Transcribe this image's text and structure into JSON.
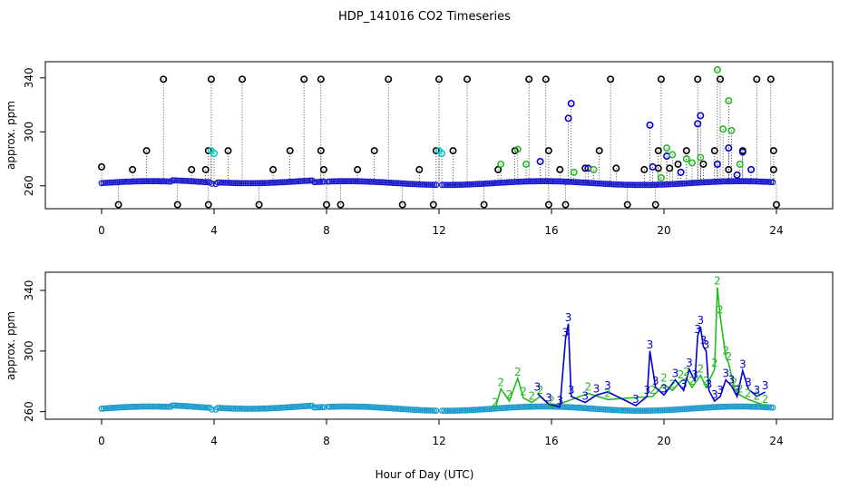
{
  "chart_data": [
    {
      "type": "scatter",
      "panel": "top",
      "title": "HDP_141016  CO2 Timeseries",
      "xlabel": "",
      "ylabel": "approx. ppm",
      "xlim": [
        -2,
        26
      ],
      "ylim": [
        243,
        352
      ],
      "x_ticks": [
        "0",
        "4",
        "8",
        "12",
        "16",
        "20",
        "24"
      ],
      "y_ticks": [
        "260",
        "300",
        "340"
      ],
      "grid": false,
      "series": [
        {
          "name": "black",
          "color": "#000000",
          "points": [
            [
              0.0,
              274
            ],
            [
              0.6,
              246
            ],
            [
              1.1,
              272
            ],
            [
              1.6,
              286
            ],
            [
              2.2,
              339
            ],
            [
              2.7,
              246
            ],
            [
              3.2,
              272
            ],
            [
              3.7,
              272
            ],
            [
              3.8,
              286
            ],
            [
              3.9,
              339
            ],
            [
              3.8,
              246
            ],
            [
              4.5,
              286
            ],
            [
              5.0,
              339
            ],
            [
              5.6,
              246
            ],
            [
              6.1,
              272
            ],
            [
              6.7,
              286
            ],
            [
              7.2,
              339
            ],
            [
              7.8,
              286
            ],
            [
              7.8,
              339
            ],
            [
              7.9,
              272
            ],
            [
              8.0,
              246
            ],
            [
              8.5,
              246
            ],
            [
              9.1,
              272
            ],
            [
              9.7,
              286
            ],
            [
              10.2,
              339
            ],
            [
              10.7,
              246
            ],
            [
              11.3,
              272
            ],
            [
              11.8,
              246
            ],
            [
              11.9,
              286
            ],
            [
              12.0,
              339
            ],
            [
              12.5,
              286
            ],
            [
              13.0,
              339
            ],
            [
              13.6,
              246
            ],
            [
              14.1,
              272
            ],
            [
              14.7,
              286
            ],
            [
              15.2,
              339
            ],
            [
              15.8,
              339
            ],
            [
              15.9,
              286
            ],
            [
              15.9,
              246
            ],
            [
              16.3,
              272
            ],
            [
              16.5,
              246
            ],
            [
              17.2,
              273
            ],
            [
              17.7,
              286
            ],
            [
              18.3,
              273
            ],
            [
              18.1,
              339
            ],
            [
              18.7,
              246
            ],
            [
              19.3,
              272
            ],
            [
              19.7,
              246
            ],
            [
              19.8,
              286
            ],
            [
              19.9,
              339
            ],
            [
              20.2,
              273
            ],
            [
              20.8,
              286
            ],
            [
              21.2,
              339
            ],
            [
              21.8,
              286
            ],
            [
              22.0,
              339
            ],
            [
              22.3,
              272
            ],
            [
              22.8,
              286
            ],
            [
              23.3,
              339
            ],
            [
              23.8,
              339
            ],
            [
              23.9,
              286
            ],
            [
              23.9,
              272
            ],
            [
              24.0,
              246
            ],
            [
              19.8,
              273
            ],
            [
              20.5,
              276
            ],
            [
              21.4,
              276
            ]
          ]
        },
        {
          "name": "blue",
          "color": "#0000cc",
          "points": [
            [
              16.6,
              310
            ],
            [
              16.7,
              321
            ],
            [
              19.5,
              305
            ],
            [
              20.1,
              282
            ],
            [
              21.2,
              306
            ],
            [
              21.3,
              312
            ],
            [
              22.3,
              288
            ],
            [
              22.8,
              285
            ],
            [
              15.6,
              278
            ],
            [
              17.3,
              273
            ],
            [
              20.6,
              270
            ],
            [
              21.9,
              276
            ],
            [
              23.1,
              272
            ],
            [
              19.6,
              274
            ],
            [
              22.6,
              268
            ]
          ]
        },
        {
          "name": "green",
          "color": "#22bb22",
          "points": [
            [
              21.9,
              346
            ],
            [
              22.1,
              302
            ],
            [
              22.3,
              323
            ],
            [
              22.4,
              301
            ],
            [
              20.1,
              288
            ],
            [
              20.3,
              283
            ],
            [
              20.8,
              280
            ],
            [
              21.3,
              281
            ],
            [
              14.8,
              287
            ],
            [
              15.1,
              276
            ],
            [
              14.2,
              276
            ],
            [
              16.8,
              270
            ],
            [
              17.5,
              272
            ],
            [
              21.0,
              277
            ],
            [
              22.7,
              276
            ],
            [
              19.9,
              266
            ]
          ]
        },
        {
          "name": "cyan",
          "color": "#00cccc",
          "points": [
            [
              3.9,
              286
            ],
            [
              4.0,
              284
            ],
            [
              12.0,
              286
            ],
            [
              12.1,
              284
            ]
          ]
        }
      ]
    },
    {
      "type": "line",
      "panel": "bottom",
      "title": "",
      "xlabel": "Hour of Day (UTC)",
      "ylabel": "approx. ppm",
      "xlim": [
        -2,
        26
      ],
      "ylim": [
        255,
        352
      ],
      "x_ticks": [
        "0",
        "4",
        "8",
        "12",
        "16",
        "20",
        "24"
      ],
      "y_ticks": [
        "260",
        "300",
        "340"
      ],
      "grid": false,
      "series": [
        {
          "name": "2",
          "color": "#22bb22",
          "x": [
            14.0,
            14.2,
            14.5,
            14.8,
            15.0,
            15.3,
            15.6,
            16.0,
            17.3,
            18.0,
            19.6,
            20.0,
            20.3,
            20.6,
            20.8,
            21.0,
            21.3,
            21.5,
            21.8,
            21.9,
            22.0,
            22.2,
            22.3,
            22.5,
            22.7,
            23.0,
            23.3,
            23.6
          ],
          "values": [
            262,
            275,
            267,
            282,
            269,
            266,
            270,
            263,
            272,
            268,
            270,
            278,
            274,
            280,
            282,
            276,
            284,
            276,
            288,
            342,
            323,
            296,
            292,
            275,
            271,
            268,
            266,
            264
          ]
        },
        {
          "name": "3",
          "color": "#0000cc",
          "x": [
            15.5,
            15.9,
            16.3,
            16.5,
            16.6,
            16.7,
            17.2,
            17.6,
            18.0,
            19.0,
            19.4,
            19.5,
            19.7,
            20.0,
            20.4,
            20.7,
            20.9,
            21.1,
            21.2,
            21.3,
            21.4,
            21.5,
            21.6,
            21.8,
            22.0,
            22.2,
            22.4,
            22.6,
            22.8,
            23.0,
            23.3,
            23.6
          ],
          "values": [
            272,
            265,
            263,
            308,
            318,
            270,
            266,
            271,
            273,
            264,
            270,
            300,
            276,
            271,
            281,
            274,
            288,
            280,
            310,
            316,
            303,
            300,
            274,
            267,
            270,
            281,
            277,
            270,
            287,
            275,
            270,
            273
          ]
        }
      ]
    }
  ]
}
